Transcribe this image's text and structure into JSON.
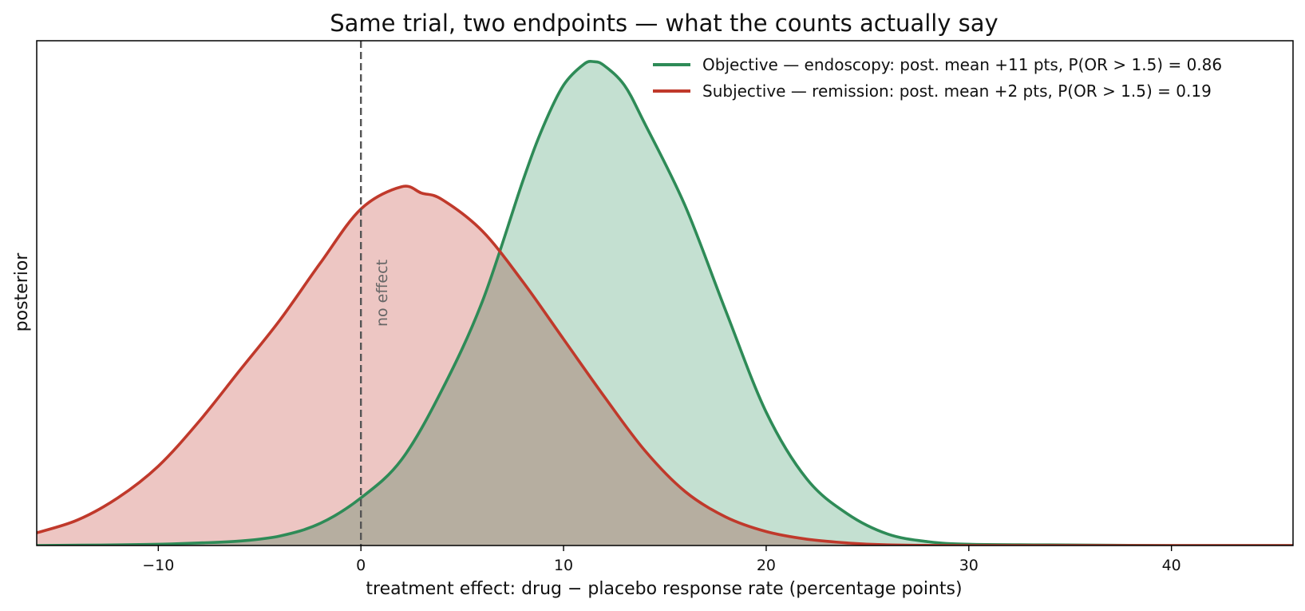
{
  "chart_data": {
    "type": "area",
    "title": "Same trial, two endpoints — what the counts actually say",
    "xlabel": "treatment effect:  drug − placebo response rate  (percentage points)",
    "ylabel": "posterior",
    "xlim": [
      -16,
      46
    ],
    "ylim": [
      0,
      0.0795
    ],
    "x_ticks": [
      -10,
      0,
      10,
      20,
      30,
      40
    ],
    "x_tick_labels": [
      "−10",
      "0",
      "10",
      "20",
      "30",
      "40"
    ],
    "y_ticks_shown": false,
    "grid": false,
    "legend_position": "top-right",
    "reference_line": {
      "x": 0,
      "label": "no effect",
      "style": "dashed",
      "color": "#555555"
    },
    "series": [
      {
        "name": "Objective — endoscopy:  post. mean +11 pts, P(OR > 1.5) = 0.86",
        "color": "#2e8b57",
        "fill": "#c4e0d1",
        "x": [
          -16,
          -12,
          -10,
          -8,
          -6,
          -4,
          -2,
          0,
          2,
          4,
          6,
          8,
          9,
          10,
          11,
          11.5,
          12,
          13,
          14,
          16,
          18,
          20,
          22,
          24,
          26,
          28,
          30,
          34,
          40,
          46
        ],
        "y": [
          0,
          0.0001,
          0.0002,
          0.0004,
          0.0007,
          0.0015,
          0.0035,
          0.0075,
          0.0135,
          0.0245,
          0.0385,
          0.0575,
          0.066,
          0.0725,
          0.0758,
          0.0762,
          0.0756,
          0.0725,
          0.0665,
          0.0535,
          0.037,
          0.021,
          0.0105,
          0.005,
          0.0018,
          0.0006,
          0.0002,
          0.0001,
          0,
          0
        ]
      },
      {
        "name": "Subjective — remission:  post. mean +2 pts, P(OR > 1.5) = 0.19",
        "color": "#c0392b",
        "fill": "#edc6c3",
        "x": [
          -16,
          -14,
          -12,
          -10,
          -8,
          -6,
          -4,
          -2,
          0,
          2,
          3,
          4,
          6,
          8,
          10,
          12,
          14,
          16,
          18,
          20,
          22,
          24,
          26,
          30,
          36,
          46
        ],
        "y": [
          0.002,
          0.004,
          0.0075,
          0.0125,
          0.0195,
          0.0275,
          0.0355,
          0.0445,
          0.053,
          0.0565,
          0.0555,
          0.0545,
          0.0495,
          0.0415,
          0.0325,
          0.0235,
          0.015,
          0.0085,
          0.0045,
          0.0022,
          0.001,
          0.0004,
          0.0001,
          0,
          0,
          0
        ]
      }
    ]
  }
}
